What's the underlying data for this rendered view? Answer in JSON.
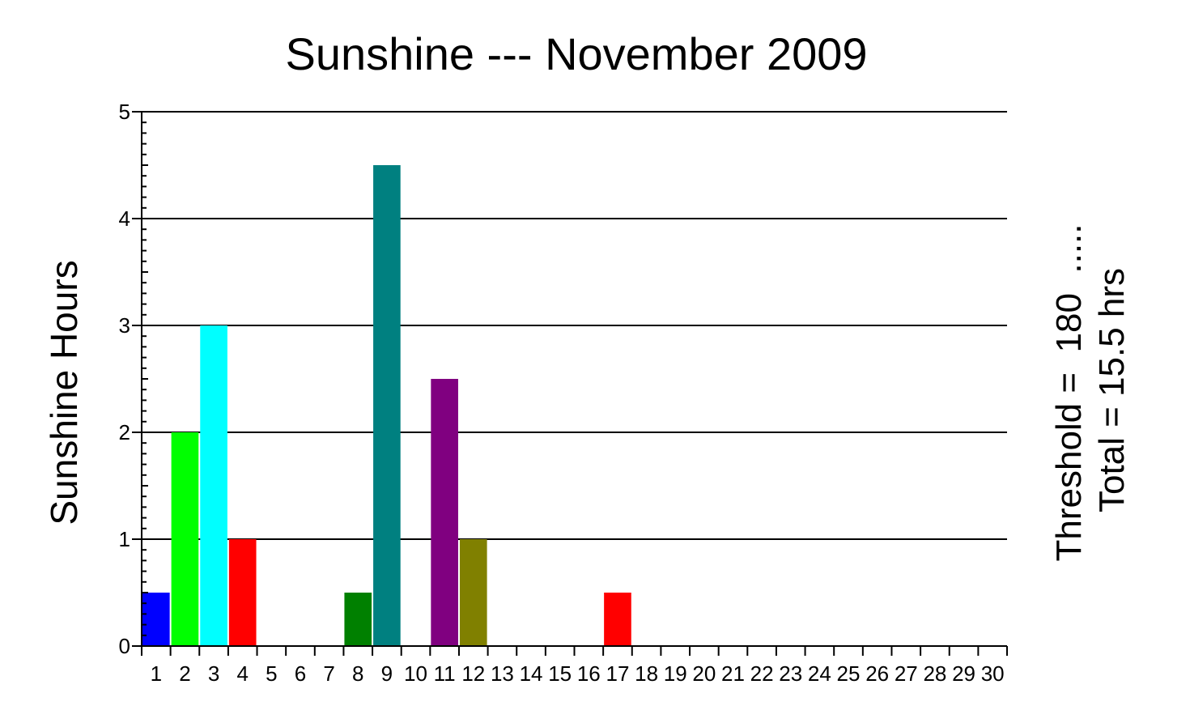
{
  "chart_data": {
    "type": "bar",
    "title": "Sunshine --- November 2009",
    "ylabel": "Sunshine Hours",
    "xlabel": "",
    "annotations": [
      "Threshold =  180  .....",
      "Total = 15.5 hrs"
    ],
    "categories": [
      "1",
      "2",
      "3",
      "4",
      "5",
      "6",
      "7",
      "8",
      "9",
      "10",
      "11",
      "12",
      "13",
      "14",
      "15",
      "16",
      "17",
      "18",
      "19",
      "20",
      "21",
      "22",
      "23",
      "24",
      "25",
      "26",
      "27",
      "28",
      "29",
      "30"
    ],
    "values": [
      0.5,
      2,
      3,
      1,
      0,
      0,
      0,
      0.5,
      4.5,
      0,
      2.5,
      1,
      0,
      0,
      0,
      0,
      0.5,
      0,
      0,
      0,
      0,
      0,
      0,
      0,
      0,
      0,
      0,
      0,
      0,
      0
    ],
    "colors": [
      "#0000ff",
      "#00ff00",
      "#00ffff",
      "#ff0000",
      "#ff00ff",
      "#ffff00",
      "#808080",
      "#008000",
      "#008080",
      "#000080",
      "#800080",
      "#808000",
      "#c0c0c0",
      "#000000",
      "#ff8000",
      "#8000ff",
      "#ff0000",
      "#0000ff",
      "#00ff00",
      "#00ffff",
      "#ff00ff",
      "#ffff00",
      "#808080",
      "#008000",
      "#008080",
      "#000080",
      "#800080",
      "#808000",
      "#c0c0c0",
      "#000000"
    ],
    "yticks": [
      "0",
      "1",
      "2",
      "3",
      "4",
      "5"
    ],
    "ylim": [
      0,
      5
    ],
    "grid": true
  }
}
